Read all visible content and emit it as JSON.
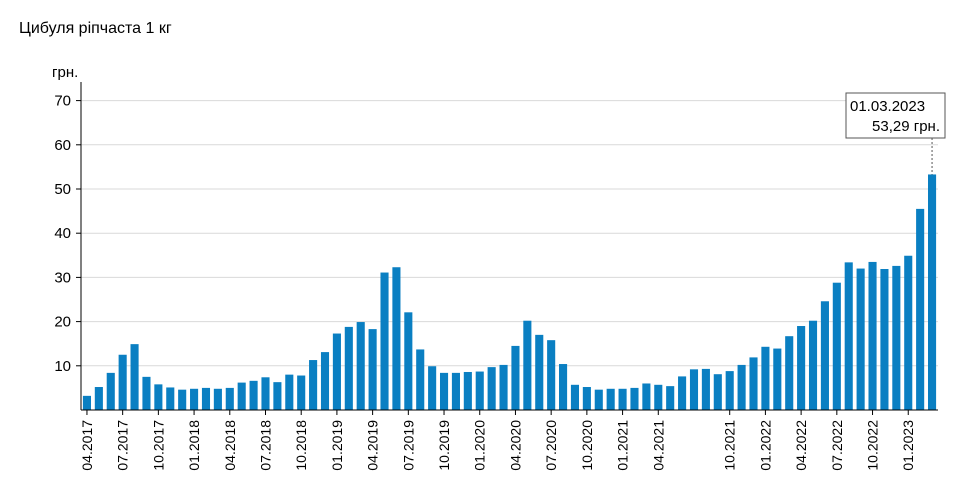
{
  "chart_data": {
    "type": "bar",
    "title": "Цибуля ріпчаста 1 кг",
    "ylabel": "грн.",
    "xlabel": "",
    "ylim": [
      0,
      75
    ],
    "y_ticks": [
      10,
      20,
      30,
      40,
      50,
      60,
      70
    ],
    "grid": true,
    "bar_color": "#0a7fc2",
    "categories": [
      "04.2017",
      "05.2017",
      "06.2017",
      "07.2017",
      "08.2017",
      "09.2017",
      "10.2017",
      "11.2017",
      "12.2017",
      "01.2018",
      "02.2018",
      "03.2018",
      "04.2018",
      "05.2018",
      "06.2018",
      "07.2018",
      "08.2018",
      "09.2018",
      "10.2018",
      "11.2018",
      "12.2018",
      "01.2019",
      "02.2019",
      "03.2019",
      "04.2019",
      "05.2019",
      "06.2019",
      "07.2019",
      "08.2019",
      "09.2019",
      "10.2019",
      "11.2019",
      "12.2019",
      "01.2020",
      "02.2020",
      "03.2020",
      "04.2020",
      "05.2020",
      "06.2020",
      "07.2020",
      "08.2020",
      "09.2020",
      "10.2020",
      "11.2020",
      "12.2020",
      "01.2021",
      "02.2021",
      "03.2021",
      "04.2021",
      "05.2021",
      "06.2021",
      "07.2021",
      "08.2021",
      "09.2021",
      "10.2021",
      "11.2021",
      "12.2021",
      "01.2022",
      "02.2022",
      "03.2022",
      "04.2022",
      "05.2022",
      "06.2022",
      "07.2022",
      "08.2022",
      "09.2022",
      "10.2022",
      "11.2022",
      "12.2022",
      "01.2023",
      "02.2023",
      "03.2023"
    ],
    "values": [
      3.2,
      5.2,
      8.4,
      12.5,
      14.9,
      7.5,
      5.8,
      5.1,
      4.6,
      4.8,
      5.0,
      4.8,
      5.0,
      6.2,
      6.6,
      7.4,
      6.3,
      8.0,
      7.8,
      11.3,
      13.1,
      17.3,
      18.8,
      19.9,
      18.3,
      31.1,
      32.3,
      22.1,
      13.7,
      9.9,
      8.4,
      8.4,
      8.6,
      8.7,
      9.7,
      10.2,
      14.5,
      20.2,
      17.0,
      15.8,
      10.4,
      5.7,
      5.2,
      4.6,
      4.8,
      4.8,
      5.0,
      6.0,
      5.7,
      5.4,
      7.6,
      9.2,
      9.3,
      8.1,
      8.8,
      10.2,
      11.9,
      14.3,
      13.9,
      16.7,
      19.0,
      20.2,
      24.6,
      28.8,
      33.4,
      32.0,
      33.5,
      31.9,
      32.6,
      34.9,
      45.5,
      53.29
    ],
    "x_tick_labels": [
      {
        "index": 0,
        "label": "04.2017"
      },
      {
        "index": 3,
        "label": "07.2017"
      },
      {
        "index": 6,
        "label": "10.2017"
      },
      {
        "index": 9,
        "label": "01.2018"
      },
      {
        "index": 12,
        "label": "04.2018"
      },
      {
        "index": 15,
        "label": "07.2018"
      },
      {
        "index": 18,
        "label": "10.2018"
      },
      {
        "index": 21,
        "label": "01.2019"
      },
      {
        "index": 24,
        "label": "04.2019"
      },
      {
        "index": 27,
        "label": "07.2019"
      },
      {
        "index": 30,
        "label": "10.2019"
      },
      {
        "index": 33,
        "label": "01.2020"
      },
      {
        "index": 36,
        "label": "04.2020"
      },
      {
        "index": 39,
        "label": "07.2020"
      },
      {
        "index": 42,
        "label": "10.2020"
      },
      {
        "index": 45,
        "label": "01.2021"
      },
      {
        "index": 48,
        "label": "04.2021"
      },
      {
        "index": 54,
        "label": "10.2021"
      },
      {
        "index": 57,
        "label": "01.2022"
      },
      {
        "index": 60,
        "label": "04.2022"
      },
      {
        "index": 63,
        "label": "07.2022"
      },
      {
        "index": 66,
        "label": "10.2022"
      },
      {
        "index": 69,
        "label": "01.2023"
      }
    ],
    "tooltip": {
      "index": 71,
      "date": "01.03.2023",
      "value_text": "53,29 грн."
    }
  }
}
